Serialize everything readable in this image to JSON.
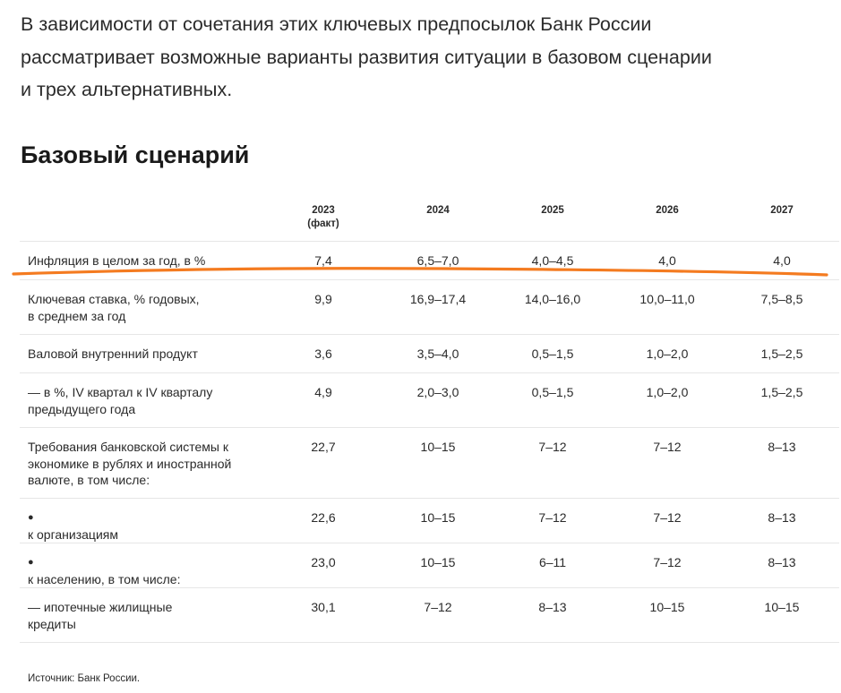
{
  "intro": {
    "lines": [
      "В зависимости от сочетания этих ключевых предпосылок Банк России",
      "рассматривает возможные варианты развития ситуации в базовом сценарии",
      "и трех альтернативных."
    ]
  },
  "section_title": "Базовый сценарий",
  "table": {
    "headers": [
      {
        "year": "2023",
        "note": "(факт)"
      },
      {
        "year": "2024",
        "note": ""
      },
      {
        "year": "2025",
        "note": ""
      },
      {
        "year": "2026",
        "note": ""
      },
      {
        "year": "2027",
        "note": ""
      }
    ],
    "rows": [
      {
        "label_lines": [
          "Инфляция в целом за год, в %"
        ],
        "values": [
          "7,4",
          "6,5–7,0",
          "4,0–4,5",
          "4,0",
          "4,0"
        ]
      },
      {
        "label_lines": [
          "Ключевая ставка, % годовых,",
          "в среднем за год"
        ],
        "values": [
          "9,9",
          "16,9–17,4",
          "14,0–16,0",
          "10,0–11,0",
          "7,5–8,5"
        ]
      },
      {
        "label_lines": [
          "Валовой внутренний продукт"
        ],
        "values": [
          "3,6",
          "3,5–4,0",
          "0,5–1,5",
          "1,0–2,0",
          "1,5–2,5"
        ]
      },
      {
        "label_lines": [
          "— в %, IV квартал к IV кварталу",
          "предыдущего года"
        ],
        "values": [
          "4,9",
          "2,0–3,0",
          "0,5–1,5",
          "1,0–2,0",
          "1,5–2,5"
        ]
      },
      {
        "label_lines": [
          "Требования банковской системы к",
          "экономике в рублях и иностранной",
          "валюте, в том числе:"
        ],
        "values": [
          "22,7",
          "10–15",
          "7–12",
          "7–12",
          "8–13"
        ]
      },
      {
        "bullet": "●",
        "label_lines": [
          "к организациям"
        ],
        "values": [
          "22,6",
          "10–15",
          "7–12",
          "7–12",
          "8–13"
        ]
      },
      {
        "bullet": "●",
        "label_lines": [
          "к населению, в том числе:"
        ],
        "values": [
          "23,0",
          "10–15",
          "6–11",
          "7–12",
          "8–13"
        ]
      },
      {
        "label_lines": [
          "— ипотечные жилищные",
          "кредиты"
        ],
        "values": [
          "30,1",
          "7–12",
          "8–13",
          "10–15",
          "10–15"
        ]
      }
    ]
  },
  "source": "Источник: Банк России.",
  "colors": {
    "highlight_underline": "#f47b20",
    "row_divider": "#e6e6e6",
    "text": "#2a2a2a"
  }
}
